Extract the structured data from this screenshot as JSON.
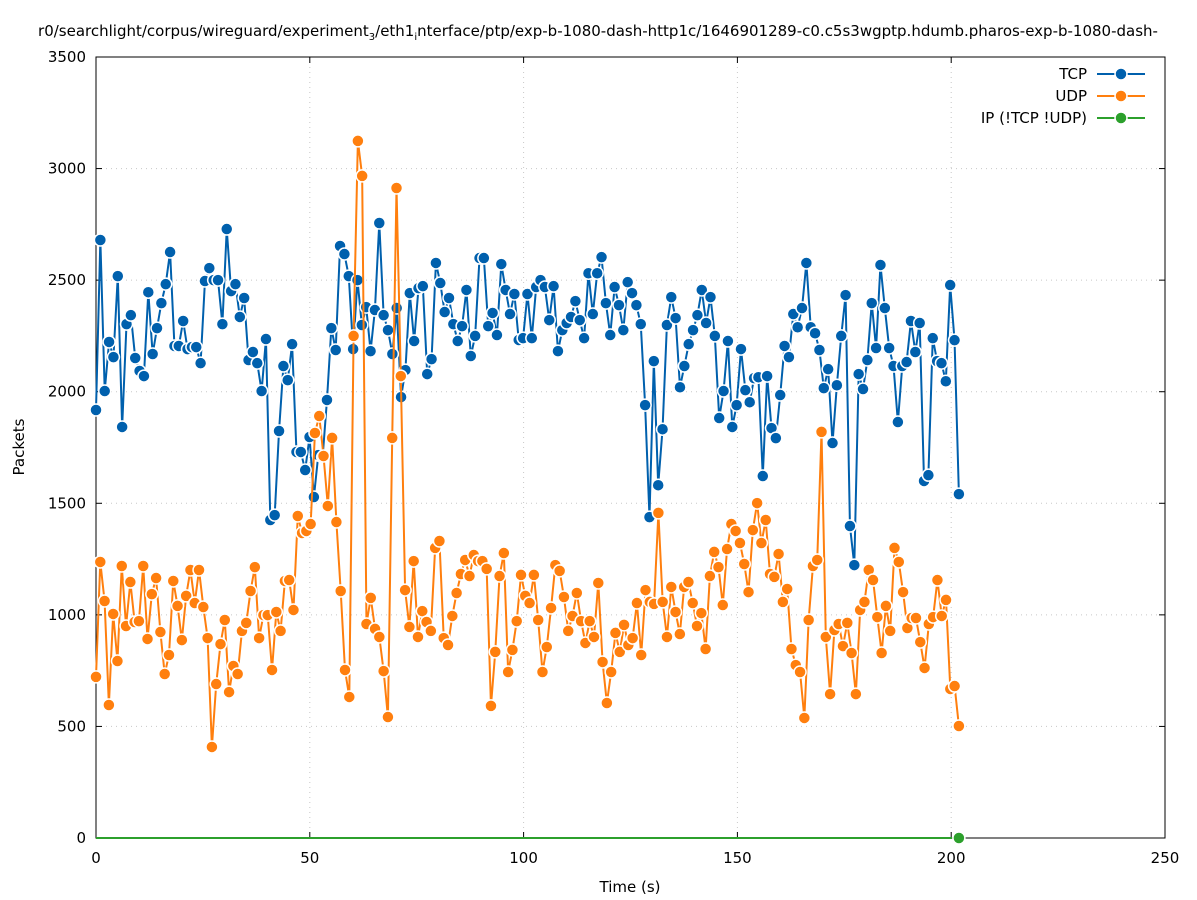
{
  "chart_data": {
    "type": "line",
    "title_parts": [
      "r0/searchlight/corpus/wireguard/experiment",
      "3",
      "/eth1",
      "i",
      "nterface/ptp/exp-b-1080-dash-http1c/1646901289-c0.c5s3wgptp.hdumb.pharos-exp-b-1080-dash-"
    ],
    "xlabel": "Time (s)",
    "ylabel": "Packets",
    "xlim": [
      0,
      250
    ],
    "ylim": [
      0,
      3500
    ],
    "xticks": [
      0,
      50,
      100,
      150,
      200,
      250
    ],
    "yticks": [
      0,
      500,
      1000,
      1500,
      2000,
      2500,
      3000,
      3500
    ],
    "grid": true,
    "legend_position": "top-right",
    "series": [
      {
        "name": "TCP",
        "color": "#0060ad",
        "t_start": 0,
        "t_end": 201.8,
        "values": [
          1918,
          2680,
          2003,
          2223,
          2155,
          2518,
          1842,
          2303,
          2343,
          2151,
          2093,
          2070,
          2446,
          2169,
          2285,
          2397,
          2482,
          2626,
          2205,
          2205,
          2317,
          2191,
          2200,
          2200,
          2128,
          2496,
          2554,
          2500,
          2500,
          2303,
          2729,
          2451,
          2482,
          2335,
          2420,
          2142,
          2178,
          2128,
          2003,
          2236,
          1425,
          1447,
          1824,
          2115,
          2052,
          2213,
          1730,
          1730,
          1649,
          1797,
          1528,
          1716,
          1707,
          1963,
          2285,
          2187,
          2653,
          2617,
          2518,
          2191,
          2500,
          2299,
          2379,
          2182,
          2366,
          2756,
          2343,
          2276,
          2169,
          2375,
          1976,
          2097,
          2442,
          2227,
          2464,
          2473,
          2079,
          2146,
          2577,
          2487,
          2357,
          2420,
          2303,
          2227,
          2294,
          2456,
          2160,
          2250,
          2599,
          2599,
          2294,
          2353,
          2254,
          2572,
          2456,
          2348,
          2438,
          2232,
          2240,
          2438,
          2240,
          2469,
          2500,
          2469,
          2321,
          2473,
          2182,
          2276,
          2308,
          2335,
          2406,
          2321,
          2240,
          2531,
          2348,
          2531,
          2603,
          2397,
          2254,
          2469,
          2388,
          2276,
          2491,
          2442,
          2388,
          2303,
          1940,
          1438,
          2137,
          1581,
          1832,
          2299,
          2424,
          2330,
          2020,
          2115,
          2213,
          2276,
          2343,
          2456,
          2308,
          2424,
          2250,
          1882,
          2003,
          2227,
          1842,
          1940,
          2191,
          2007,
          1953,
          2061,
          2065,
          1622,
          2070,
          1837,
          1792,
          1985,
          2205,
          2155,
          2348,
          2289,
          2375,
          2577,
          2289,
          2262,
          2187,
          2016,
          2101,
          1770,
          2029,
          2250,
          2433,
          1398,
          1223,
          2079,
          2012,
          2142,
          2397,
          2196,
          2568,
          2375,
          2196,
          2115,
          1864,
          2115,
          2133,
          2317,
          2178,
          2308,
          1600,
          1626,
          2240,
          2137,
          2128,
          2047,
          2478,
          2231,
          1541
        ]
      },
      {
        "name": "UDP",
        "color": "#ff7f0e",
        "t_start": 0,
        "t_end": 201.8,
        "values": [
          722,
          1237,
          1062,
          596,
          1004,
          793,
          1219,
          950,
          1147,
          968,
          972,
          1219,
          892,
          1093,
          1165,
          923,
          735,
          820,
          1152,
          1040,
          887,
          1085,
          1201,
          1053,
          1201,
          1035,
          896,
          408,
          690,
          869,
          977,
          654,
          771,
          735,
          928,
          964,
          1107,
          1214,
          896,
          999,
          999,
          753,
          1013,
          928,
          1152,
          1156,
          1022,
          1443,
          1367,
          1376,
          1407,
          1815,
          1891,
          1712,
          1488,
          1793,
          1416,
          1107,
          753,
          632,
          2250,
          3124,
          2967,
          959,
          1076,
          937,
          901,
          748,
          542,
          1793,
          2913,
          2070,
          1111,
          946,
          1241,
          901,
          1017,
          968,
          928,
          1300,
          1331,
          896,
          865,
          995,
          1098,
          1183,
          1246,
          1174,
          1268,
          1241,
          1241,
          1206,
          592,
          834,
          1174,
          1277,
          744,
          843,
          972,
          1179,
          1085,
          1053,
          1179,
          977,
          744,
          856,
          1031,
          1223,
          1197,
          1080,
          928,
          995,
          1098,
          972,
          874,
          972,
          901,
          1143,
          789,
          605,
          744,
          919,
          834,
          955,
          865,
          896,
          1053,
          820,
          1111,
          1058,
          1049,
          1457,
          1058,
          901,
          1125,
          1013,
          914,
          1125,
          1147,
          1053,
          950,
          1008,
          847,
          1174,
          1282,
          1214,
          1044,
          1295,
          1407,
          1376,
          1322,
          1228,
          1102,
          1380,
          1501,
          1322,
          1425,
          1183,
          1170,
          1273,
          1058,
          1116,
          847,
          775,
          744,
          538,
          977,
          1219,
          1246,
          1820,
          901,
          645,
          932,
          959,
          860,
          964,
          829,
          645,
          1022,
          1058,
          1201,
          1156,
          990,
          829,
          1040,
          928,
          1300,
          1237,
          1102,
          941,
          986,
          986,
          878,
          762,
          959,
          990,
          1156,
          995,
          1067,
          668,
          681,
          502
        ]
      },
      {
        "name": "IP (!TCP  !UDP)",
        "color": "#2ca02c",
        "t_start": 0,
        "t_end": 201.8,
        "values": [
          0,
          0
        ],
        "marker_only_last": true
      }
    ]
  }
}
